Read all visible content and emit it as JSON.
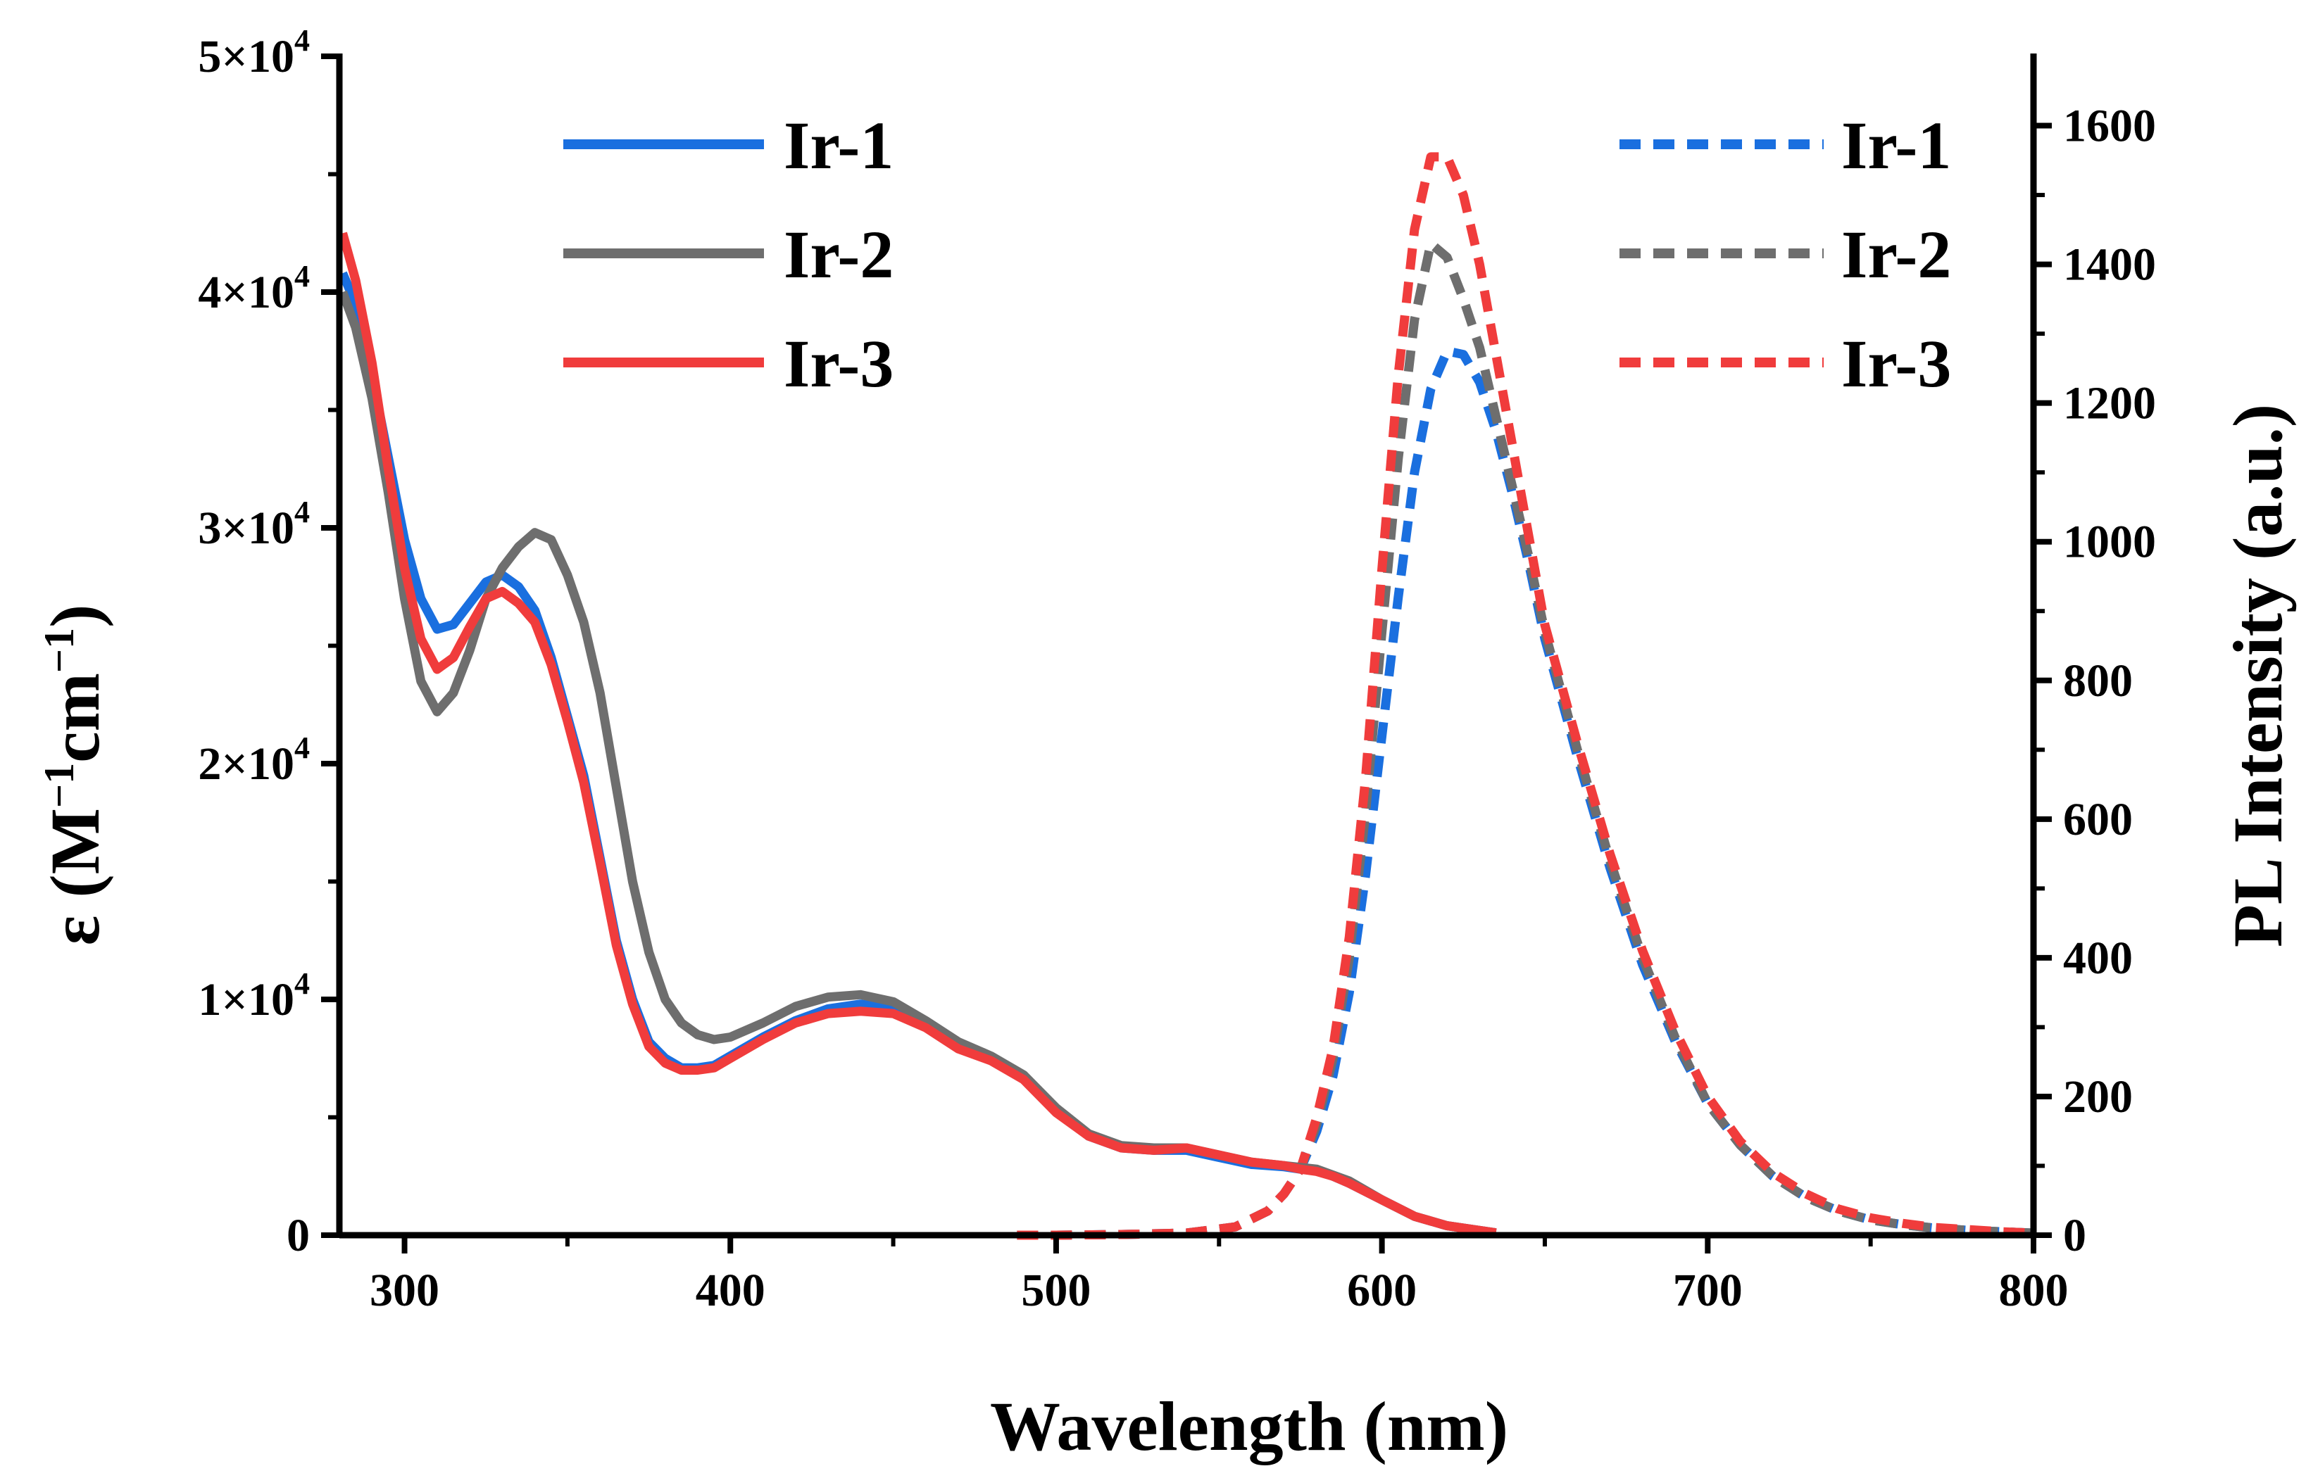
{
  "chart_data": {
    "type": "line",
    "xlabel": "Wavelength (nm)",
    "ylabel_left": {
      "prefix": "ε (M",
      "sup1": "−1",
      "mid": "cm",
      "sup2": "−1",
      "suffix": ")"
    },
    "ylabel_right": "PL Intensity (a.u.)",
    "xlim": [
      280,
      800
    ],
    "ylim_left": [
      0,
      50000
    ],
    "ylim_right": [
      0,
      1700
    ],
    "x_ticks": [
      300,
      400,
      500,
      600,
      700,
      800
    ],
    "y_left_ticks": [
      {
        "value": 0,
        "mant": "0",
        "exp": ""
      },
      {
        "value": 10000,
        "mant": "1×10",
        "exp": "4"
      },
      {
        "value": 20000,
        "mant": "2×10",
        "exp": "4"
      },
      {
        "value": 30000,
        "mant": "3×10",
        "exp": "4"
      },
      {
        "value": 40000,
        "mant": "4×10",
        "exp": "4"
      },
      {
        "value": 50000,
        "mant": "5×10",
        "exp": "4"
      }
    ],
    "y_right_ticks": [
      0,
      200,
      400,
      600,
      800,
      1000,
      1200,
      1400,
      1600
    ],
    "colors": {
      "Ir-1": "#1a6fdf",
      "Ir-2": "#6e6e6e",
      "Ir-3": "#f03c3c"
    },
    "absorption_series": [
      {
        "name": "Ir-1",
        "axis": "left",
        "x": [
          281,
          285,
          290,
          295,
          300,
          305,
          310,
          315,
          320,
          325,
          330,
          335,
          340,
          345,
          350,
          355,
          360,
          365,
          370,
          375,
          380,
          385,
          390,
          395,
          400,
          410,
          420,
          430,
          440,
          450,
          460,
          470,
          480,
          490,
          500,
          510,
          520,
          530,
          540,
          550,
          560,
          570,
          575,
          580,
          585,
          590,
          600,
          610,
          620,
          630,
          635
        ],
        "y": [
          40800,
          39500,
          36500,
          33000,
          29500,
          27000,
          25700,
          25900,
          26800,
          27700,
          28000,
          27500,
          26500,
          24500,
          22000,
          19500,
          16000,
          12500,
          10000,
          8200,
          7500,
          7100,
          7100,
          7200,
          7600,
          8400,
          9100,
          9600,
          9800,
          9600,
          9000,
          8000,
          7500,
          6700,
          5300,
          4200,
          3700,
          3600,
          3600,
          3300,
          3000,
          2900,
          2800,
          2750,
          2500,
          2200,
          1500,
          800,
          400,
          200,
          100
        ]
      },
      {
        "name": "Ir-2",
        "axis": "left",
        "x": [
          281,
          285,
          290,
          295,
          300,
          305,
          310,
          315,
          320,
          325,
          330,
          335,
          340,
          345,
          350,
          355,
          360,
          365,
          370,
          375,
          380,
          385,
          390,
          395,
          400,
          410,
          420,
          430,
          440,
          450,
          460,
          470,
          480,
          490,
          500,
          510,
          520,
          530,
          540,
          550,
          560,
          570,
          580,
          590,
          600,
          610,
          620,
          630,
          635
        ],
        "y": [
          40000,
          38500,
          35500,
          31500,
          27000,
          23500,
          22200,
          23000,
          24800,
          27000,
          28300,
          29200,
          29800,
          29500,
          28000,
          26000,
          23000,
          19000,
          15000,
          12000,
          10000,
          9000,
          8500,
          8300,
          8400,
          9000,
          9700,
          10100,
          10200,
          9900,
          9100,
          8200,
          7600,
          6800,
          5400,
          4300,
          3800,
          3700,
          3700,
          3400,
          3100,
          2950,
          2800,
          2300,
          1500,
          800,
          400,
          200,
          100
        ]
      },
      {
        "name": "Ir-3",
        "axis": "left",
        "x": [
          281,
          285,
          290,
          295,
          300,
          305,
          310,
          315,
          320,
          325,
          330,
          335,
          340,
          345,
          350,
          355,
          360,
          365,
          370,
          375,
          380,
          385,
          390,
          395,
          400,
          410,
          420,
          430,
          440,
          450,
          460,
          470,
          480,
          490,
          500,
          510,
          520,
          530,
          540,
          550,
          560,
          570,
          575,
          580,
          585,
          590,
          600,
          610,
          620,
          630,
          635
        ],
        "y": [
          42500,
          40500,
          37000,
          32500,
          28300,
          25300,
          24000,
          24500,
          25800,
          27000,
          27300,
          26800,
          26000,
          24200,
          21800,
          19200,
          15800,
          12300,
          9800,
          8000,
          7300,
          7000,
          7000,
          7100,
          7500,
          8300,
          9000,
          9400,
          9500,
          9400,
          8800,
          7900,
          7400,
          6600,
          5200,
          4200,
          3700,
          3600,
          3700,
          3400,
          3100,
          2950,
          2800,
          2700,
          2500,
          2200,
          1500,
          800,
          400,
          200,
          100
        ]
      }
    ],
    "emission_series": [
      {
        "name": "Ir-1",
        "axis": "right",
        "x": [
          488,
          500,
          520,
          540,
          555,
          565,
          570,
          575,
          580,
          585,
          590,
          595,
          600,
          605,
          610,
          615,
          620,
          625,
          630,
          635,
          640,
          645,
          650,
          660,
          670,
          680,
          690,
          700,
          710,
          720,
          730,
          740,
          750,
          760,
          770,
          780,
          790,
          800
        ],
        "y": [
          0,
          0,
          1,
          3,
          12,
          35,
          60,
          95,
          150,
          230,
          350,
          520,
          720,
          920,
          1100,
          1220,
          1275,
          1270,
          1230,
          1160,
          1070,
          970,
          860,
          690,
          530,
          390,
          280,
          190,
          130,
          85,
          55,
          35,
          22,
          15,
          10,
          7,
          5,
          3
        ]
      },
      {
        "name": "Ir-2",
        "axis": "right",
        "x": [
          488,
          500,
          520,
          540,
          555,
          565,
          570,
          575,
          580,
          585,
          590,
          595,
          600,
          605,
          610,
          615,
          620,
          625,
          630,
          635,
          640,
          645,
          650,
          660,
          670,
          680,
          690,
          700,
          710,
          720,
          730,
          740,
          750,
          760,
          770,
          780,
          790,
          800
        ],
        "y": [
          0,
          0,
          1,
          3,
          12,
          35,
          60,
          95,
          160,
          255,
          400,
          610,
          870,
          1120,
          1320,
          1430,
          1410,
          1350,
          1280,
          1180,
          1080,
          980,
          870,
          700,
          540,
          400,
          285,
          190,
          130,
          85,
          55,
          35,
          22,
          15,
          10,
          7,
          5,
          3
        ]
      },
      {
        "name": "Ir-3",
        "axis": "right",
        "x": [
          488,
          500,
          520,
          540,
          555,
          565,
          570,
          575,
          580,
          585,
          590,
          595,
          600,
          605,
          610,
          615,
          620,
          625,
          630,
          635,
          640,
          645,
          650,
          660,
          670,
          680,
          690,
          700,
          710,
          720,
          730,
          740,
          750,
          760,
          770,
          780,
          790,
          800
        ],
        "y": [
          0,
          0,
          1,
          3,
          12,
          35,
          60,
          95,
          170,
          270,
          430,
          660,
          960,
          1240,
          1450,
          1555,
          1555,
          1500,
          1400,
          1270,
          1140,
          1010,
          880,
          710,
          550,
          410,
          295,
          200,
          135,
          90,
          60,
          38,
          25,
          17,
          11,
          8,
          5,
          3
        ]
      }
    ],
    "legend_left": [
      {
        "name": "Ir-1",
        "label": "Ir-1"
      },
      {
        "name": "Ir-2",
        "label": "Ir-2"
      },
      {
        "name": "Ir-3",
        "label": "Ir-3"
      }
    ],
    "legend_right": [
      {
        "name": "Ir-1",
        "label": "Ir-1"
      },
      {
        "name": "Ir-2",
        "label": "Ir-2"
      },
      {
        "name": "Ir-3",
        "label": "Ir-3"
      }
    ]
  }
}
